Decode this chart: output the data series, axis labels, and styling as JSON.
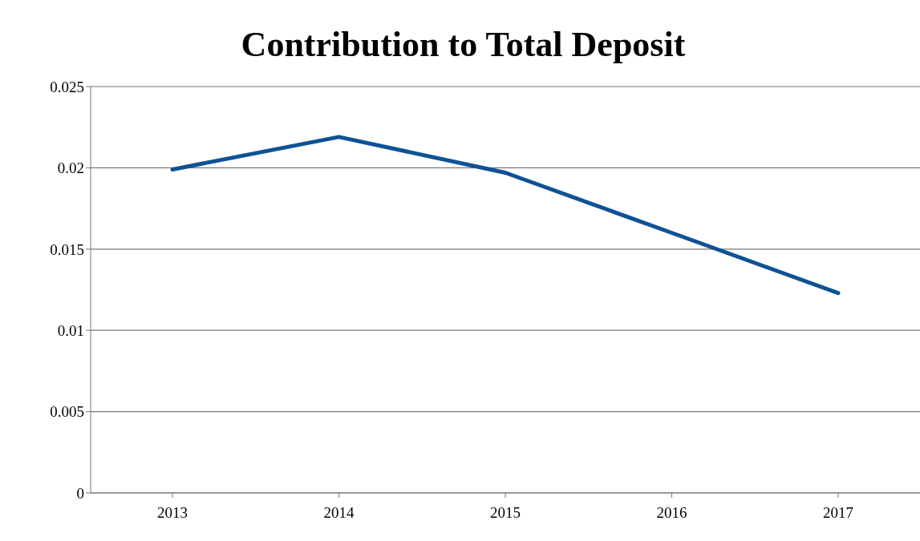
{
  "chart_data": {
    "type": "line",
    "title": "Contribution to Total Deposit",
    "categories": [
      "2013",
      "2014",
      "2015",
      "2016",
      "2017"
    ],
    "series": [
      {
        "color": "#0f5294",
        "values": [
          0.0199,
          0.0219,
          0.0197,
          0.016,
          0.0123
        ]
      }
    ],
    "ylim": [
      0,
      0.025
    ],
    "yticks": [
      0,
      0.005,
      0.01,
      0.015,
      0.02,
      0.025
    ],
    "grid": "y",
    "legend": false,
    "marker": "none",
    "line_style": "solid"
  }
}
